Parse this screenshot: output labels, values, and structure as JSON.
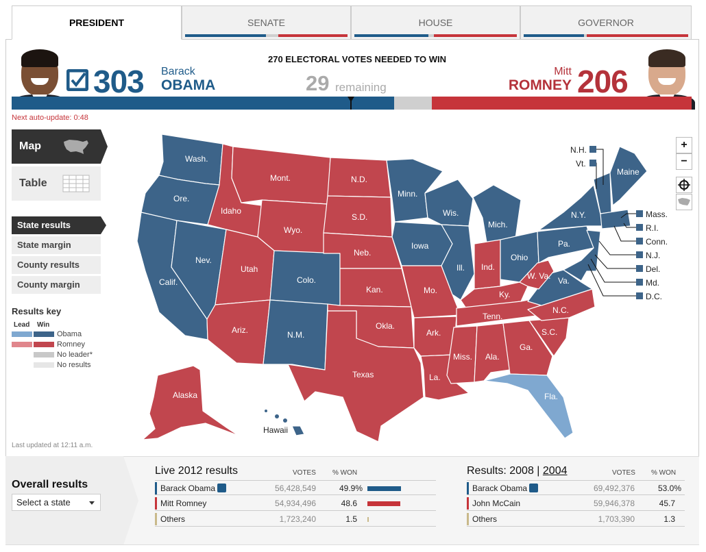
{
  "tabs": [
    {
      "label": "PRESIDENT",
      "active": true
    },
    {
      "label": "SENATE",
      "active": false
    },
    {
      "label": "HOUSE",
      "active": false
    },
    {
      "label": "GOVERNOR",
      "active": false
    }
  ],
  "header": {
    "needed": "270 ELECTORAL VOTES NEEDED TO WIN",
    "obama": {
      "ev": "303",
      "first": "Barack",
      "last": "OBAMA"
    },
    "romney": {
      "ev": "206",
      "first": "Mitt",
      "last": "ROMNEY"
    },
    "remaining_count": "29",
    "remaining_label": "remaining",
    "auto_update": "Next auto-update: 0:48"
  },
  "views": {
    "map": "Map",
    "table": "Table"
  },
  "result_modes": [
    "State results",
    "State margin",
    "County results",
    "County margin"
  ],
  "key": {
    "title": "Results key",
    "lead": "Lead",
    "win": "Win",
    "items": [
      "Obama",
      "Romney",
      "No leader*",
      "No results"
    ]
  },
  "last_updated": "Last updated at 12:11 a.m.",
  "zoom": {
    "in": "+",
    "out": "−"
  },
  "map": {
    "states": {
      "wa": "Wash.",
      "or": "Ore.",
      "ca": "Calif.",
      "nv": "Nev.",
      "id": "Idaho",
      "mt": "Mont.",
      "wy": "Wyo.",
      "ut": "Utah",
      "az": "Ariz.",
      "co": "Colo.",
      "nm": "N.M.",
      "nd": "N.D.",
      "sd": "S.D.",
      "ne": "Neb.",
      "ks": "Kan.",
      "ok": "Okla.",
      "tx": "Texas",
      "mn": "Minn.",
      "ia": "Iowa",
      "mo": "Mo.",
      "ar": "Ark.",
      "la": "La.",
      "wi": "Wis.",
      "il": "Ill.",
      "mi": "Mich.",
      "in": "Ind.",
      "oh": "Ohio",
      "ky": "Ky.",
      "tn": "Tenn.",
      "ms": "Miss.",
      "al": "Ala.",
      "ga": "Ga.",
      "fl": "Fla.",
      "sc": "S.C.",
      "nc": "N.C.",
      "va": "Va.",
      "wv": "W. Va.",
      "pa": "Pa.",
      "ny": "N.Y.",
      "me": "Maine",
      "ak": "Alaska",
      "hi": "Hawaii"
    },
    "northeast": {
      "nh": "N.H.",
      "vt": "Vt.",
      "ma": "Mass.",
      "ri": "R.I.",
      "ct": "Conn.",
      "nj": "N.J.",
      "de": "Del.",
      "md": "Md.",
      "dc": "D.C."
    }
  },
  "colors": {
    "obama_win": "#3d6489",
    "romney_win": "#c1464e",
    "obama_lead": "#7fa8d0",
    "romney_lead": "#e0868c",
    "no_leader": "#c8c8c8",
    "no_results": "#e6e6e6"
  },
  "bottom": {
    "overall_title": "Overall results",
    "select_placeholder": "Select a state",
    "live": {
      "title": "Live 2012 results",
      "votes_hdr": "VOTES",
      "pct_hdr": "% WON",
      "rows": [
        {
          "name": "Barack Obama",
          "votes": "56,428,549",
          "pct": "49.9%",
          "winner": true
        },
        {
          "name": "Mitt Romney",
          "votes": "54,934,496",
          "pct": "48.6",
          "winner": false
        },
        {
          "name": "Others",
          "votes": "1,723,240",
          "pct": "1.5",
          "winner": false
        }
      ]
    },
    "past": {
      "title_prefix": "Results: 2008",
      "sep": "|",
      "alt_year": "2004",
      "votes_hdr": "VOTES",
      "pct_hdr": "% WON",
      "rows": [
        {
          "name": "John McCain",
          "votes": "59,946,378",
          "pct": "45.7",
          "winner": false
        },
        {
          "name": "Barack Obama",
          "votes": "69,492,376",
          "pct": "53.0%",
          "winner": true
        },
        {
          "name": "Others",
          "votes": "1,703,390",
          "pct": "1.3",
          "winner": false
        }
      ]
    }
  }
}
